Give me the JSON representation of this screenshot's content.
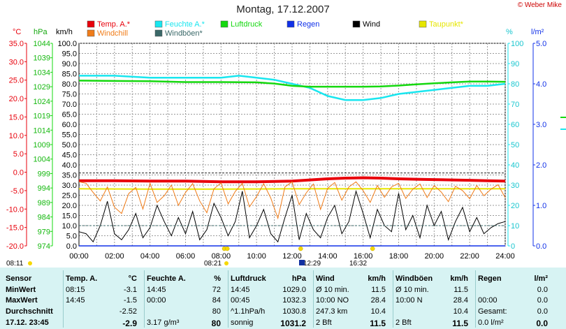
{
  "header": {
    "title": "Montag, 17.12.2007",
    "copyright": "© Weber Mike"
  },
  "axes": {
    "temp_label": "°C",
    "press_label": "hPa",
    "wind_label": "km/h",
    "hum_label": "%",
    "rain_label": "l/m²",
    "temp_ticks": [
      "35.0",
      "30.0",
      "25.0",
      "20.0",
      "15.0",
      "10.0",
      "5.0",
      "0.0",
      "-5.0",
      "-10.0",
      "-15.0",
      "-20.0"
    ],
    "press_ticks": [
      "1044",
      "1039",
      "1034",
      "1029",
      "1024",
      "1019",
      "1014",
      "1009",
      "1004",
      "999",
      "994",
      "989",
      "984",
      "979",
      "974"
    ],
    "wind_ticks": [
      "100.0",
      "95.0",
      "90.0",
      "85.0",
      "80.0",
      "75.0",
      "70.0",
      "65.0",
      "60.0",
      "55.0",
      "50.0",
      "45.0",
      "40.0",
      "35.0",
      "30.0",
      "25.0",
      "20.0",
      "15.0",
      "10.0",
      "5.0",
      "0.0"
    ],
    "hum_ticks": [
      "100",
      "90",
      "80",
      "70",
      "60",
      "50",
      "40",
      "30",
      "20",
      "10",
      "0"
    ],
    "rain_ticks": [
      "5.0",
      "4.0",
      "3.0",
      "2.0",
      "1.0",
      "0.0"
    ],
    "x_ticks": [
      "00:00",
      "02:00",
      "04:00",
      "06:00",
      "08:00",
      "10:00",
      "12:00",
      "14:00",
      "16:00",
      "18:00",
      "20:00",
      "22:00",
      "24:00"
    ]
  },
  "legend": [
    {
      "label": "Temp. A.*",
      "color": "#e8000b"
    },
    {
      "label": "Feuchte A.*",
      "color": "#19e6ef"
    },
    {
      "label": "Luftdruck",
      "color": "#15d80f"
    },
    {
      "label": "Regen",
      "color": "#1030e8"
    },
    {
      "label": "Wind",
      "color": "#000000"
    },
    {
      "label": "Taupunkt*",
      "color": "#e6e600"
    },
    {
      "label": "Windchill",
      "color": "#f07c18"
    },
    {
      "label": "Windböen*",
      "color": "#3a6868"
    }
  ],
  "sun_times": [
    {
      "label": "08:11",
      "time": "08:11"
    },
    {
      "label": "08:21",
      "time": "08:21"
    },
    {
      "label": "12:29",
      "time": "12:29"
    },
    {
      "label": "16:32",
      "time": "16:32"
    }
  ],
  "chart_data": {
    "type": "line",
    "title": "Montag, 17.12.2007",
    "x_range_hours": [
      0,
      24
    ],
    "temp_range_c": [
      -20,
      35
    ],
    "pressure_range_hpa": [
      974,
      1044
    ],
    "wind_range_kmh": [
      0,
      100
    ],
    "humidity_range_pct": [
      0,
      100
    ],
    "rain_range_lm2": [
      0,
      5
    ],
    "series": [
      {
        "name": "Temp. A.*",
        "color": "#e8000b",
        "axis": "temp",
        "x": [
          0,
          2,
          4,
          6,
          8,
          10,
          12,
          13,
          14,
          15,
          16,
          17,
          18,
          19,
          20,
          21,
          22,
          23,
          24
        ],
        "y": [
          -2.3,
          -2.3,
          -2.4,
          -2.4,
          -2.6,
          -2.6,
          -2.4,
          -2.1,
          -1.8,
          -1.6,
          -1.5,
          -1.6,
          -1.8,
          -1.9,
          -2.0,
          -2.1,
          -2.2,
          -2.3,
          -2.4
        ]
      },
      {
        "name": "Feuchte A.*",
        "color": "#19e6ef",
        "axis": "humidity",
        "x": [
          0,
          2,
          4,
          6,
          8,
          9,
          10,
          11,
          12,
          13,
          14,
          15,
          16,
          17,
          18,
          19,
          20,
          21,
          22,
          23,
          24
        ],
        "y": [
          84,
          84,
          83,
          83,
          83,
          84,
          83,
          82,
          80,
          78,
          74,
          72,
          72,
          73,
          75,
          76,
          77,
          78,
          79,
          79,
          80
        ]
      },
      {
        "name": "Luftdruck",
        "color": "#15d80f",
        "axis": "pressure",
        "x": [
          0,
          2,
          4,
          6,
          8,
          10,
          11,
          12,
          13,
          14,
          15,
          16,
          17,
          18,
          19,
          20,
          21,
          22,
          23,
          24
        ],
        "y": [
          1031.1,
          1031.0,
          1030.9,
          1030.6,
          1030.6,
          1030.5,
          1030.1,
          1029.3,
          1029.0,
          1029.0,
          1029.0,
          1029.0,
          1029.1,
          1029.4,
          1029.8,
          1030.2,
          1030.5,
          1030.8,
          1030.8,
          1030.7
        ]
      },
      {
        "name": "Taupunkt*",
        "color": "#e6e600",
        "axis": "temp",
        "x": [
          0,
          4,
          8,
          12,
          16,
          20,
          24
        ],
        "y": [
          -4.5,
          -4.6,
          -4.6,
          -4.5,
          -4.5,
          -4.5,
          -4.5
        ]
      },
      {
        "name": "Windchill",
        "color": "#f07c18",
        "axis": "temp",
        "x": [
          0,
          0.4,
          0.8,
          1.2,
          1.6,
          2.0,
          2.4,
          2.8,
          3.2,
          3.6,
          4.0,
          4.4,
          4.8,
          5.2,
          5.6,
          6.0,
          6.4,
          6.8,
          7.2,
          7.6,
          8.0,
          8.4,
          8.8,
          9.2,
          9.6,
          10.0,
          10.4,
          10.8,
          11.2,
          11.6,
          12.0,
          12.4,
          12.8,
          13.2,
          13.6,
          14.0,
          14.4,
          14.8,
          15.2,
          15.6,
          16.0,
          16.4,
          16.8,
          17.2,
          17.6,
          18.0,
          18.4,
          18.8,
          19.2,
          19.6,
          20.0,
          20.4,
          20.8,
          21.2,
          21.6,
          22.0,
          22.4,
          22.8,
          23.2,
          23.6,
          24.0
        ],
        "y": [
          -2.6,
          -3.0,
          -5.5,
          -7.8,
          -4.0,
          -9.5,
          -11.2,
          -5.8,
          -4.1,
          -10.0,
          -3.0,
          -8.2,
          -6.4,
          -3.5,
          -9.0,
          -5.5,
          -3.1,
          -7.8,
          -11.0,
          -4.5,
          -2.9,
          -8.6,
          -5.2,
          -3.0,
          -9.4,
          -6.6,
          -3.1,
          -7.0,
          -12.5,
          -4.0,
          -2.6,
          -8.8,
          -5.6,
          -3.2,
          -10.1,
          -4.4,
          -2.8,
          -7.6,
          -4.0,
          -2.6,
          -5.0,
          -8.2,
          -3.6,
          -6.8,
          -4.0,
          -3.0,
          -7.1,
          -4.6,
          -3.2,
          -6.9,
          -3.6,
          -5.4,
          -8.0,
          -3.8,
          -5.0,
          -7.2,
          -3.6,
          -6.4,
          -4.6,
          -3.4,
          -6.9
        ]
      },
      {
        "name": "Wind",
        "color": "#000000",
        "axis": "wind",
        "x": [
          0,
          0.4,
          0.8,
          1.2,
          1.6,
          2.0,
          2.4,
          2.8,
          3.2,
          3.6,
          4.0,
          4.4,
          4.8,
          5.2,
          5.6,
          6.0,
          6.4,
          6.8,
          7.2,
          7.6,
          8.0,
          8.4,
          8.8,
          9.2,
          9.6,
          10.0,
          10.4,
          10.8,
          11.2,
          11.6,
          12.0,
          12.4,
          12.8,
          13.2,
          13.6,
          14.0,
          14.4,
          14.8,
          15.2,
          15.6,
          16.0,
          16.4,
          16.8,
          17.2,
          17.6,
          18.0,
          18.4,
          18.8,
          19.2,
          19.6,
          20.0,
          20.4,
          20.8,
          21.2,
          21.6,
          22.0,
          22.4,
          22.8,
          23.2,
          23.6,
          24.0
        ],
        "y": [
          7,
          6,
          2,
          10,
          22,
          6,
          3,
          8,
          16,
          4,
          9,
          20,
          12,
          5,
          14,
          6,
          17,
          3,
          8,
          21,
          14,
          5,
          12,
          27,
          4,
          10,
          18,
          6,
          2,
          14,
          25,
          3,
          16,
          8,
          4,
          14,
          20,
          6,
          12,
          27,
          16,
          4,
          18,
          10,
          7,
          26,
          8,
          15,
          4,
          20,
          10,
          17,
          3,
          12,
          19,
          7,
          14,
          6,
          9,
          11,
          12
        ]
      },
      {
        "name": "Windböen*",
        "color": "#3a6868",
        "axis": "wind",
        "x": [
          0,
          4,
          8,
          12,
          16,
          20,
          24
        ],
        "y": [
          10,
          10,
          10,
          10,
          10,
          10,
          10
        ]
      },
      {
        "name": "Regen",
        "color": "#1030e8",
        "axis": "rain",
        "x": [
          0,
          24
        ],
        "y": [
          0,
          0
        ]
      }
    ],
    "dashed_level_wind": 36
  },
  "table": {
    "row_labels": [
      "Sensor",
      "MinWert",
      "MaxWert",
      "Durchschnitt",
      "17.12. 23:45"
    ],
    "sections": [
      {
        "head": "Temp. A.",
        "unit": "°C",
        "rows": [
          [
            "08:15",
            "-3.1"
          ],
          [
            "14:45",
            "-1.5"
          ],
          [
            "",
            "-2.52"
          ],
          [
            "",
            "-2.9"
          ]
        ]
      },
      {
        "head": "Feuchte A.",
        "unit": "%",
        "rows": [
          [
            "14:45",
            "72"
          ],
          [
            "00:00",
            "84"
          ],
          [
            "",
            "80"
          ],
          [
            "3.17 g/m³",
            "80"
          ]
        ]
      },
      {
        "head": "Luftdruck",
        "unit": "hPa",
        "rows": [
          [
            "14:45",
            "1029.0"
          ],
          [
            "00:45",
            "1032.3"
          ],
          [
            "^1.1hPa/h",
            "1030.8"
          ],
          [
            "sonnig",
            "1031.2"
          ]
        ]
      },
      {
        "head": "Wind",
        "unit": "km/h",
        "rows": [
          [
            "Ø 10 min.",
            "11.5"
          ],
          [
            "10:00   NO",
            "28.4"
          ],
          [
            "247.3 km",
            "10.4"
          ],
          [
            "2 Bft",
            "11.5"
          ]
        ]
      },
      {
        "head": "Windböen",
        "unit": "km/h",
        "rows": [
          [
            "Ø 10 min.",
            "11.5"
          ],
          [
            "10:00   N",
            "28.4"
          ],
          [
            "",
            "10.4"
          ],
          [
            "2 Bft",
            "11.5"
          ]
        ]
      },
      {
        "head": "Regen",
        "unit": "l/m²",
        "rows": [
          [
            "",
            "0.0"
          ],
          [
            "00:00",
            "0.0"
          ],
          [
            "Gesamt:",
            "0.0"
          ],
          [
            "0.0 l/m²",
            "0.0"
          ]
        ]
      }
    ]
  }
}
